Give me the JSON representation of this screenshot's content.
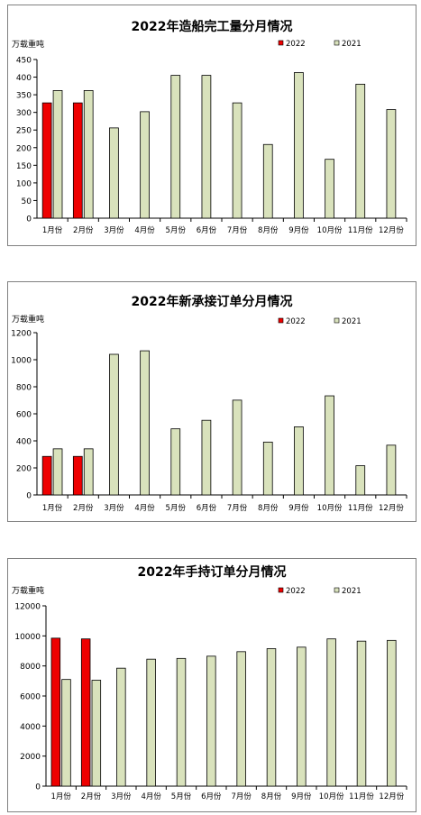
{
  "colors": {
    "series_2022": "#ee0000",
    "series_2021": "#d9e2bc",
    "bar_stroke": "#000000",
    "frame": "#808080"
  },
  "chart_data": [
    {
      "type": "bar",
      "title": "2022年造船完工量分月情况",
      "ylabel": "万载重吨",
      "xlabel": "",
      "categories": [
        "1月份",
        "2月份",
        "3月份",
        "4月份",
        "5月份",
        "6月份",
        "7月份",
        "8月份",
        "9月份",
        "10月份",
        "11月份",
        "12月份"
      ],
      "ylim": [
        0,
        450
      ],
      "yticks": [
        0,
        50,
        100,
        150,
        200,
        250,
        300,
        350,
        400,
        450
      ],
      "legend_position": "top-right",
      "series": [
        {
          "name": "2022",
          "values": [
            327,
            327,
            null,
            null,
            null,
            null,
            null,
            null,
            null,
            null,
            null,
            null
          ]
        },
        {
          "name": "2021",
          "values": [
            362,
            362,
            256,
            302,
            405,
            405,
            327,
            209,
            413,
            167,
            380,
            308
          ]
        }
      ]
    },
    {
      "type": "bar",
      "title": "2022年新承接订单分月情况",
      "ylabel": "万载重吨",
      "xlabel": "",
      "categories": [
        "1月份",
        "2月份",
        "3月份",
        "4月份",
        "5月份",
        "6月份",
        "7月份",
        "8月份",
        "9月份",
        "10月份",
        "11月份",
        "12月份"
      ],
      "ylim": [
        0,
        1200
      ],
      "yticks": [
        0,
        200,
        400,
        600,
        800,
        1000,
        1200
      ],
      "legend_position": "top-right",
      "series": [
        {
          "name": "2022",
          "values": [
            285,
            285,
            null,
            null,
            null,
            null,
            null,
            null,
            null,
            null,
            null,
            null
          ]
        },
        {
          "name": "2021",
          "values": [
            341,
            341,
            1040,
            1066,
            489,
            552,
            701,
            391,
            504,
            733,
            216,
            368
          ]
        }
      ]
    },
    {
      "type": "bar",
      "title": "2022年手持订单分月情况",
      "ylabel": "万载重吨",
      "xlabel": "",
      "categories": [
        "1月份",
        "2月份",
        "3月份",
        "4月份",
        "5月份",
        "6月份",
        "7月份",
        "8月份",
        "9月份",
        "10月份",
        "11月份",
        "12月份"
      ],
      "ylim": [
        0,
        12000
      ],
      "yticks": [
        0,
        2000,
        4000,
        6000,
        8000,
        10000,
        12000
      ],
      "legend_position": "top-right",
      "series": [
        {
          "name": "2022",
          "values": [
            9850,
            9800,
            null,
            null,
            null,
            null,
            null,
            null,
            null,
            null,
            null,
            null
          ]
        },
        {
          "name": "2021",
          "values": [
            7100,
            7050,
            7850,
            8450,
            8500,
            8650,
            8950,
            9150,
            9250,
            9800,
            9650,
            9700
          ]
        }
      ]
    }
  ]
}
